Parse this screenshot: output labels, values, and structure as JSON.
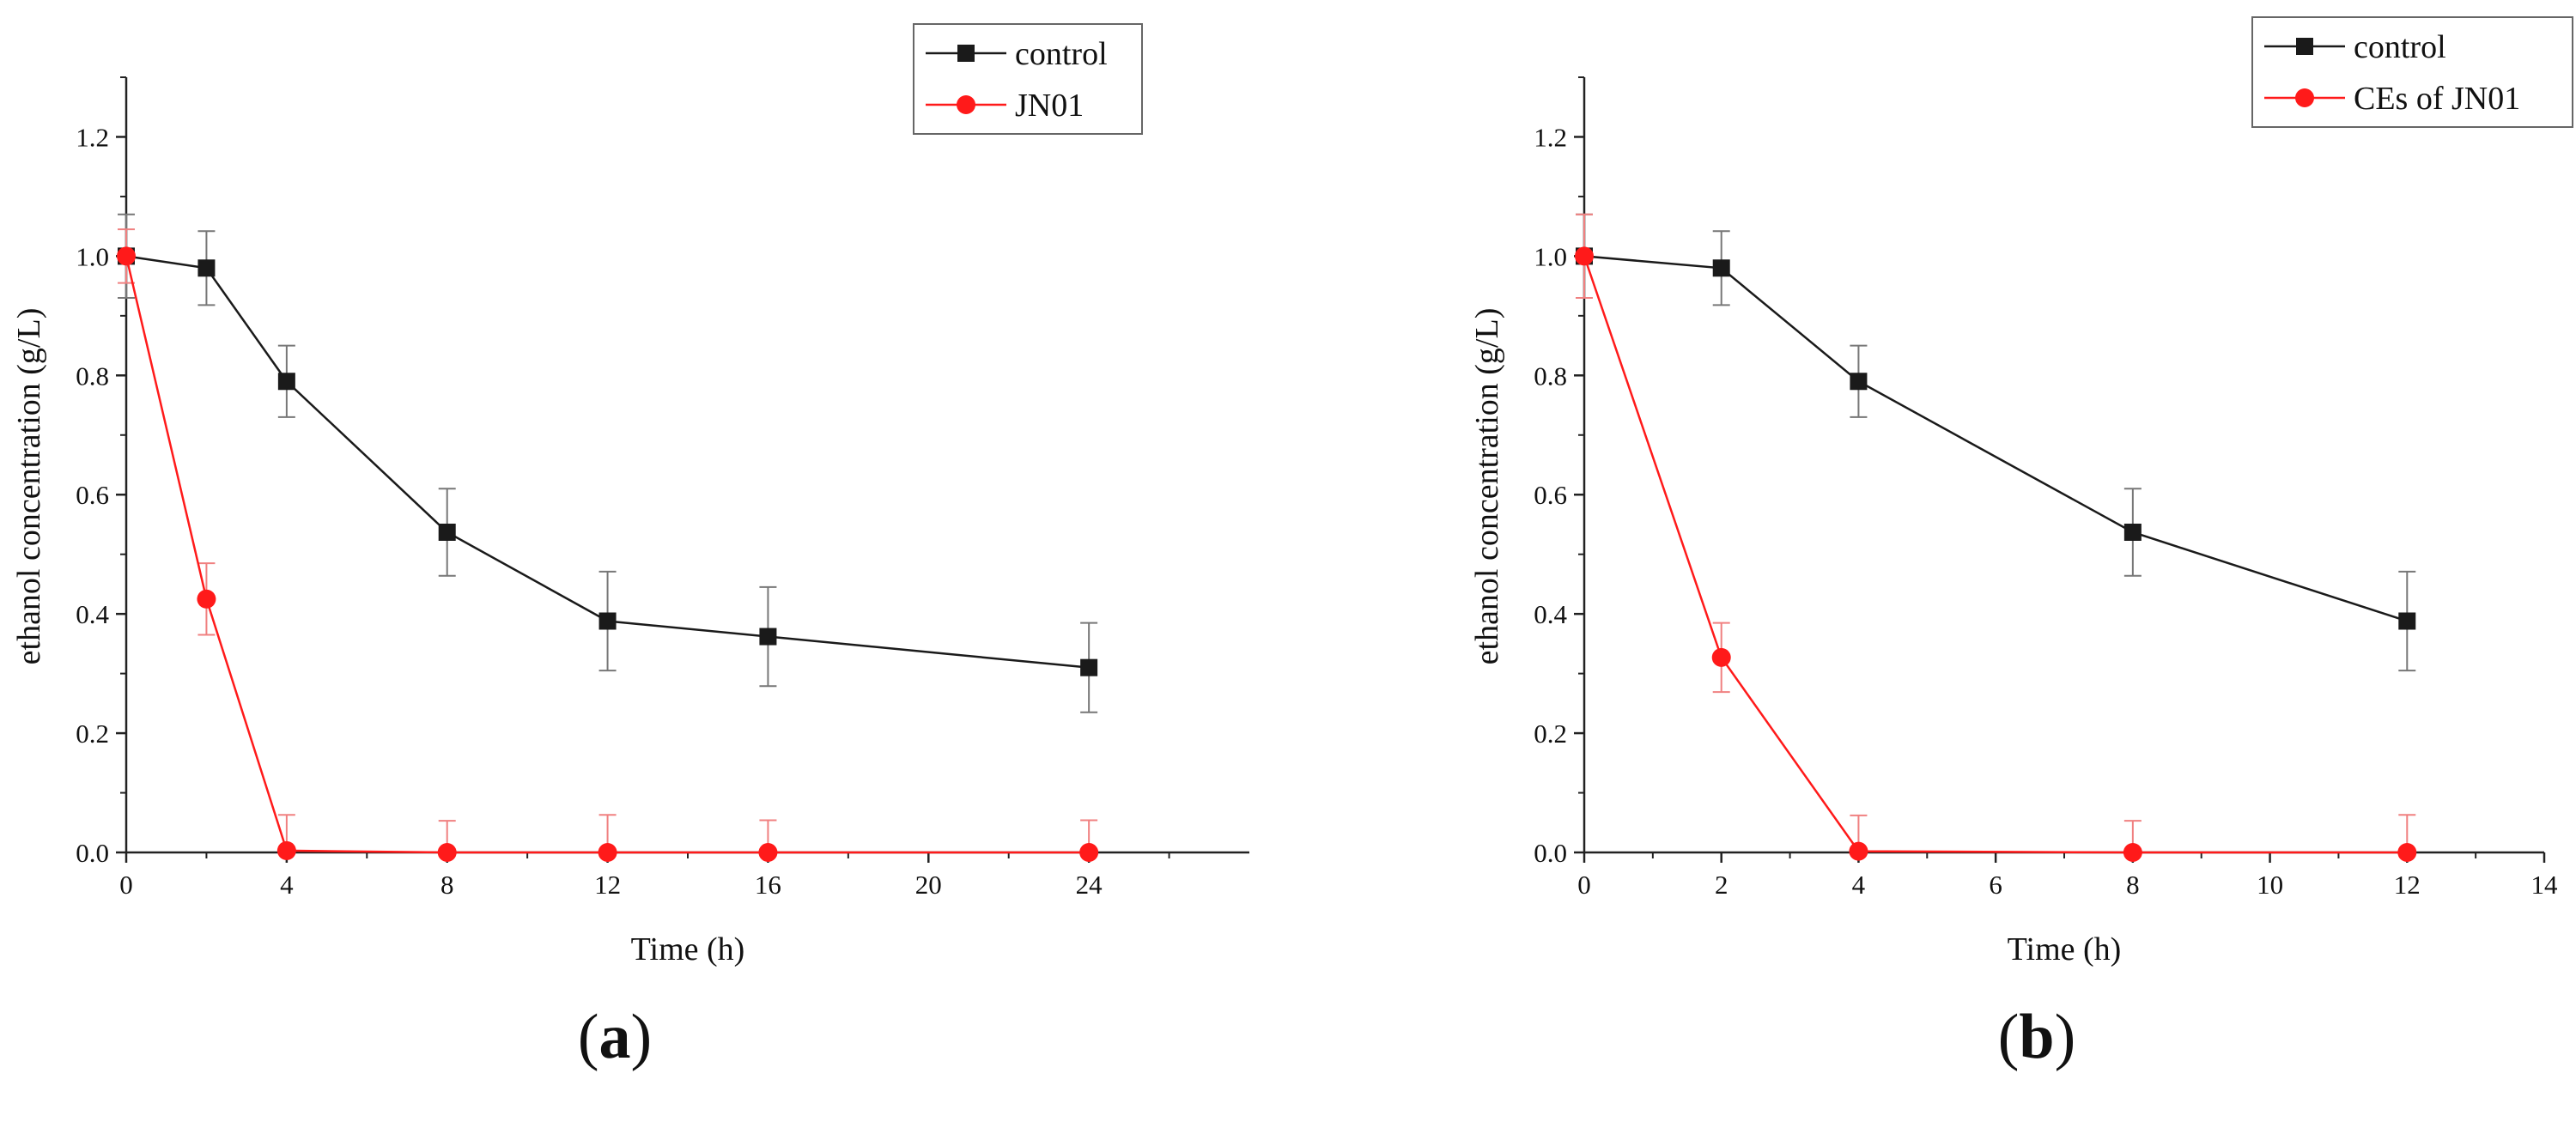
{
  "panel_labels": [
    {
      "open": "(",
      "letter": "a",
      "close": ")"
    },
    {
      "open": "(",
      "letter": "b",
      "close": ")"
    }
  ],
  "colors": {
    "control": "#1a1a1a",
    "treatment": "#ff1a1a",
    "treatment_error": "#f08080",
    "control_error": "#777777",
    "axis": "#222222"
  },
  "chart_data": [
    {
      "type": "line",
      "xlabel": "Time (h)",
      "ylabel": "ethanol concentration (g/L)",
      "xlim": [
        0,
        28
      ],
      "ylim": [
        0,
        1.3
      ],
      "xticks": [
        0,
        4,
        8,
        12,
        16,
        20,
        24
      ],
      "xminor": [
        2,
        6,
        10,
        14,
        18,
        22,
        26
      ],
      "yticks": [
        0.0,
        0.2,
        0.4,
        0.6,
        0.8,
        1.0,
        1.2
      ],
      "ytick_labels": [
        "0.0",
        "0.2",
        "0.4",
        "0.6",
        "0.8",
        "1.0",
        "1.2"
      ],
      "legend_position": "top-right",
      "series": [
        {
          "name": "control",
          "marker": "square",
          "color": "#1a1a1a",
          "x": [
            0,
            2,
            4,
            8,
            12,
            16,
            24
          ],
          "y": [
            1.0,
            0.98,
            0.79,
            0.537,
            0.388,
            0.362,
            0.31
          ],
          "err": [
            0.07,
            0.062,
            0.06,
            0.073,
            0.083,
            0.083,
            0.075
          ]
        },
        {
          "name": "JN01",
          "marker": "circle",
          "color": "#ff1a1a",
          "x": [
            0,
            2,
            4,
            8,
            12,
            16,
            24
          ],
          "y": [
            1.0,
            0.425,
            0.003,
            0.0,
            0.0,
            0.0,
            0.0
          ],
          "err": [
            0.045,
            0.06,
            0.06,
            0.053,
            0.063,
            0.054,
            0.054
          ]
        }
      ]
    },
    {
      "type": "line",
      "xlabel": "Time (h)",
      "ylabel": "ethanol concentration (g/L)",
      "xlim": [
        0,
        14
      ],
      "ylim": [
        0,
        1.3
      ],
      "xticks": [
        0,
        2,
        4,
        6,
        8,
        10,
        12,
        14
      ],
      "xminor": [
        1,
        3,
        5,
        7,
        9,
        11,
        13
      ],
      "yticks": [
        0.0,
        0.2,
        0.4,
        0.6,
        0.8,
        1.0,
        1.2
      ],
      "ytick_labels": [
        "0.0",
        "0.2",
        "0.4",
        "0.6",
        "0.8",
        "1.0",
        "1.2"
      ],
      "legend_position": "top-right",
      "series": [
        {
          "name": "control",
          "marker": "square",
          "color": "#1a1a1a",
          "x": [
            0,
            2,
            4,
            8,
            12
          ],
          "y": [
            1.0,
            0.98,
            0.79,
            0.537,
            0.388
          ],
          "err": [
            0.07,
            0.062,
            0.06,
            0.073,
            0.083
          ]
        },
        {
          "name": "CEs of JN01",
          "marker": "circle",
          "color": "#ff1a1a",
          "x": [
            0,
            2,
            4,
            8,
            12
          ],
          "y": [
            1.0,
            0.327,
            0.002,
            0.0,
            0.0
          ],
          "err": [
            0.07,
            0.058,
            0.06,
            0.053,
            0.063
          ]
        }
      ]
    }
  ]
}
